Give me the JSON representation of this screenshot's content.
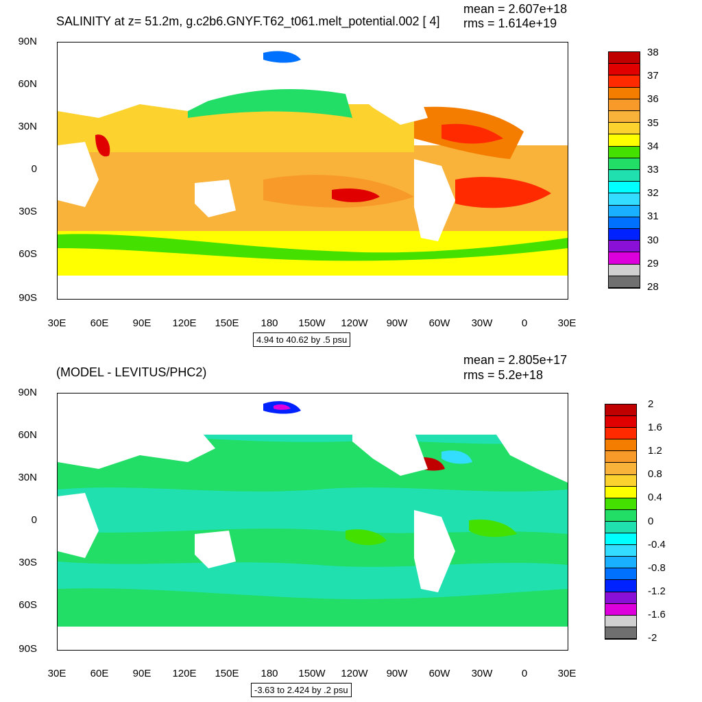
{
  "panels": [
    {
      "title": "SALINITY at z=  51.2m, g.c2b6.GNYF.T62_t061.melt_potential.002 [ 4]",
      "mean_text": "mean = 2.607e+18",
      "rms_text": "rms = 1.614e+19",
      "range_note": "4.94 to 40.62 by .5 psu",
      "lat_labels": [
        "90N",
        "60N",
        "30N",
        "0",
        "30S",
        "60S",
        "90S"
      ],
      "lon_labels": [
        "30E",
        "60E",
        "90E",
        "120E",
        "150E",
        "180",
        "150W",
        "120W",
        "90W",
        "60W",
        "30W",
        "0",
        "30E"
      ],
      "colorbar": {
        "colors": [
          "#c00000",
          "#e00000",
          "#ff2a00",
          "#f47d00",
          "#f79a2a",
          "#f9b23a",
          "#fcd22e",
          "#ffff00",
          "#44e000",
          "#22dd66",
          "#20e0b0",
          "#00ffff",
          "#33ddff",
          "#18b0ff",
          "#0070ff",
          "#0022ff",
          "#8a10d8",
          "#dd00dd",
          "#d0d0d0",
          "#707070"
        ],
        "labels": [
          "38",
          "37",
          "36",
          "35",
          "34",
          "33",
          "32",
          "31",
          "30",
          "29",
          "28"
        ]
      }
    },
    {
      "title": "(MODEL - LEVITUS/PHC2)",
      "mean_text": "mean = 2.805e+17",
      "rms_text": "rms = 5.2e+18",
      "range_note": "-3.63 to 2.424 by .2 psu",
      "lat_labels": [
        "90N",
        "60N",
        "30N",
        "0",
        "30S",
        "60S",
        "90S"
      ],
      "lon_labels": [
        "30E",
        "60E",
        "90E",
        "120E",
        "150E",
        "180",
        "150W",
        "120W",
        "90W",
        "60W",
        "30W",
        "0",
        "30E"
      ],
      "colorbar": {
        "colors": [
          "#c00000",
          "#e00000",
          "#ff2a00",
          "#f47d00",
          "#f79a2a",
          "#f9b23a",
          "#fcd22e",
          "#ffff00",
          "#44e000",
          "#22dd66",
          "#20e0b0",
          "#00ffff",
          "#33ddff",
          "#18b0ff",
          "#0070ff",
          "#0022ff",
          "#8a10d8",
          "#dd00dd",
          "#d0d0d0",
          "#707070"
        ],
        "labels": [
          "2",
          "1.6",
          "1.2",
          "0.8",
          "0.4",
          "0",
          "-0.4",
          "-0.8",
          "-1.2",
          "-1.6",
          "-2"
        ]
      }
    }
  ]
}
